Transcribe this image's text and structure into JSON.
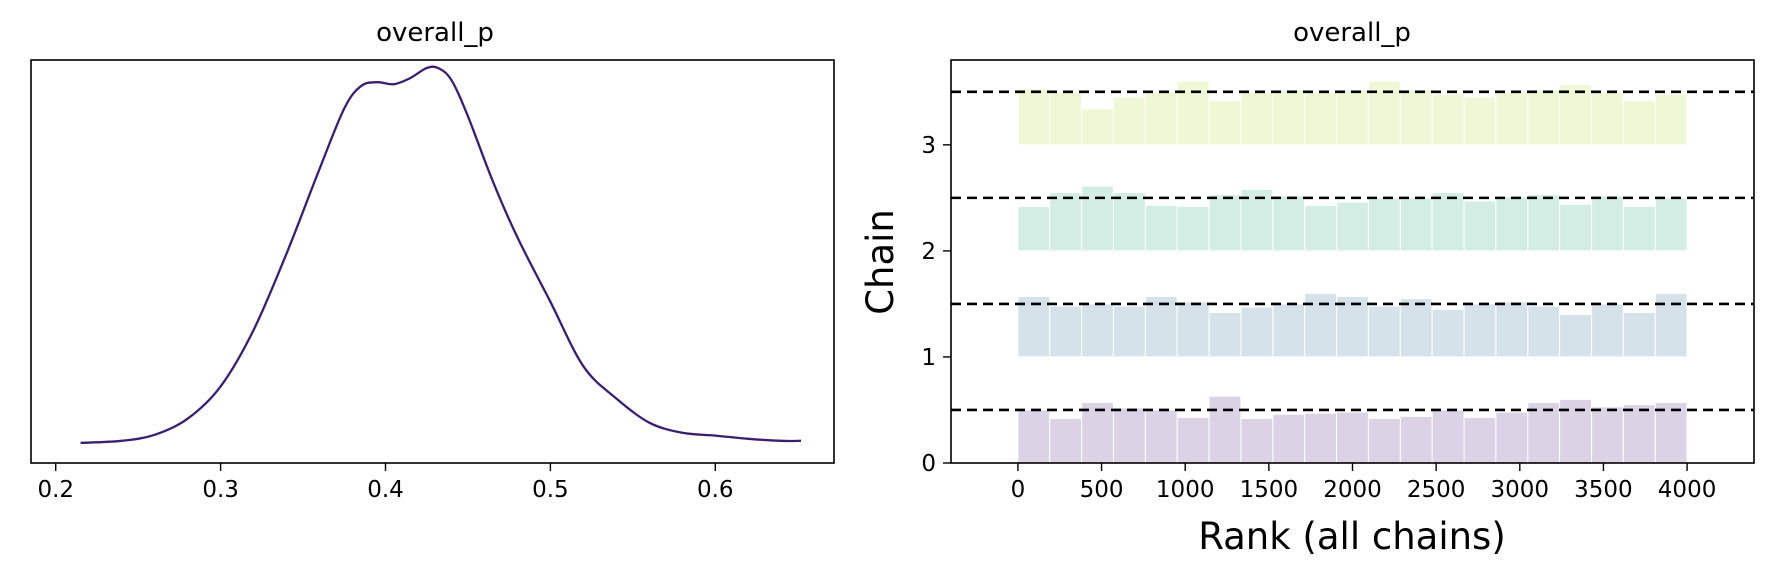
{
  "chart_data": [
    {
      "type": "line",
      "title": "overall_p",
      "xlabel": "",
      "ylabel": "",
      "xlim": [
        0.185,
        0.672
      ],
      "ylim": [
        0,
        1
      ],
      "xticks": [
        "0.2",
        "0.3",
        "0.4",
        "0.5",
        "0.6"
      ],
      "xtick_values": [
        0.2,
        0.3,
        0.4,
        0.5,
        0.6
      ],
      "color": "#3b1f6e",
      "series": [
        {
          "x": [
            0.215,
            0.24,
            0.26,
            0.28,
            0.3,
            0.32,
            0.34,
            0.36,
            0.375,
            0.385,
            0.395,
            0.405,
            0.415,
            0.425,
            0.432,
            0.44,
            0.45,
            0.465,
            0.48,
            0.5,
            0.52,
            0.54,
            0.56,
            0.58,
            0.6,
            0.62,
            0.64,
            0.652
          ],
          "y": [
            0.05,
            0.055,
            0.07,
            0.11,
            0.19,
            0.33,
            0.52,
            0.73,
            0.88,
            0.935,
            0.945,
            0.94,
            0.955,
            0.98,
            0.98,
            0.95,
            0.86,
            0.7,
            0.56,
            0.4,
            0.24,
            0.16,
            0.1,
            0.075,
            0.068,
            0.06,
            0.055,
            0.055
          ]
        }
      ]
    },
    {
      "type": "bar",
      "title": "overall_p",
      "xlabel": "Rank (all chains)",
      "ylabel": "Chain",
      "xlim": [
        -400,
        4400
      ],
      "ylim": [
        0,
        3.8
      ],
      "xticks": [
        "0",
        "500",
        "1000",
        "1500",
        "2000",
        "2500",
        "3000",
        "3500",
        "4000"
      ],
      "xtick_values": [
        0,
        500,
        1000,
        1500,
        2000,
        2500,
        3000,
        3500,
        4000
      ],
      "yticks": [
        "0",
        "1",
        "2",
        "3"
      ],
      "ytick_values": [
        0,
        1,
        2,
        3
      ],
      "bin_edges": [
        0,
        190,
        381,
        571,
        762,
        952,
        1143,
        1333,
        1524,
        1714,
        1905,
        2095,
        2286,
        2476,
        2667,
        2857,
        3048,
        3238,
        3429,
        3619,
        3810,
        4000
      ],
      "reference_lines": [
        0.5,
        1.5,
        2.5,
        3.5
      ],
      "series": [
        {
          "name": "0",
          "color": "#dbd2e5",
          "baseline": 0,
          "values": [
            0.5,
            0.42,
            0.57,
            0.52,
            0.5,
            0.43,
            0.63,
            0.42,
            0.46,
            0.47,
            0.48,
            0.42,
            0.44,
            0.5,
            0.43,
            0.48,
            0.57,
            0.6,
            0.53,
            0.55,
            0.57
          ]
        },
        {
          "name": "1",
          "color": "#d6e2ea",
          "baseline": 1,
          "values": [
            0.57,
            0.48,
            0.5,
            0.48,
            0.57,
            0.52,
            0.42,
            0.47,
            0.5,
            0.6,
            0.57,
            0.48,
            0.55,
            0.45,
            0.5,
            0.52,
            0.48,
            0.4,
            0.5,
            0.42,
            0.6
          ]
        },
        {
          "name": "2",
          "color": "#d3ede5",
          "baseline": 2,
          "values": [
            0.42,
            0.55,
            0.61,
            0.55,
            0.43,
            0.42,
            0.53,
            0.58,
            0.52,
            0.43,
            0.46,
            0.5,
            0.5,
            0.55,
            0.47,
            0.51,
            0.53,
            0.44,
            0.52,
            0.42,
            0.5
          ]
        },
        {
          "name": "3",
          "color": "#eff8d6",
          "baseline": 3,
          "values": [
            0.53,
            0.5,
            0.34,
            0.45,
            0.5,
            0.6,
            0.42,
            0.5,
            0.52,
            0.5,
            0.52,
            0.6,
            0.52,
            0.48,
            0.45,
            0.5,
            0.52,
            0.57,
            0.5,
            0.42,
            0.48
          ]
        }
      ]
    }
  ]
}
